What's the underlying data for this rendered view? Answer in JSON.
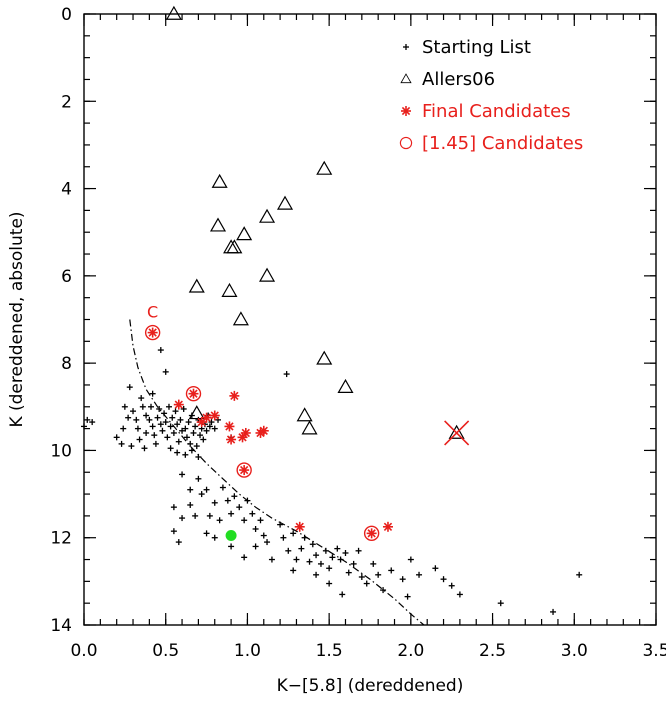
{
  "chart_data": {
    "type": "scatter",
    "title": "",
    "xlabel": "K−[5.8] (dereddened)",
    "ylabel": "K (dereddened, absolute)",
    "xlim": [
      0.0,
      3.5
    ],
    "ylim": [
      14,
      0
    ],
    "y_inverted": true,
    "x_ticks": [
      "0.0",
      "0.5",
      "1.0",
      "1.5",
      "2.0",
      "2.5",
      "3.0",
      "3.5"
    ],
    "y_ticks": [
      "0",
      "2",
      "4",
      "6",
      "8",
      "10",
      "12",
      "14"
    ],
    "x_tick_values": [
      0.0,
      0.5,
      1.0,
      1.5,
      2.0,
      2.5,
      3.0,
      3.5
    ],
    "y_tick_values": [
      0,
      2,
      4,
      6,
      8,
      10,
      12,
      14
    ],
    "legend_position": "top-right",
    "legend": [
      {
        "label": "Starting List",
        "marker": "plus",
        "color": "#000000"
      },
      {
        "label": "Allers06",
        "marker": "triangle",
        "color": "#000000"
      },
      {
        "label": "Final Candidates",
        "marker": "asterisk",
        "color": "#e8201c"
      },
      {
        "label": "[1.45] Candidates",
        "marker": "circle",
        "color": "#e8201c"
      }
    ],
    "annotations": [
      {
        "text": "C",
        "x": 0.42,
        "y": 6.95,
        "color": "#e8201c"
      }
    ],
    "series": [
      {
        "name": "Starting List",
        "marker": "plus",
        "color": "#000000",
        "points": [
          [
            0.02,
            9.3
          ],
          [
            0.05,
            9.35
          ],
          [
            0.0,
            9.45
          ],
          [
            0.28,
            8.55
          ],
          [
            0.35,
            8.8
          ],
          [
            0.42,
            8.7
          ],
          [
            0.47,
            7.7
          ],
          [
            0.5,
            8.2
          ],
          [
            0.25,
            9.0
          ],
          [
            0.27,
            9.25
          ],
          [
            0.3,
            9.1
          ],
          [
            0.32,
            9.3
          ],
          [
            0.33,
            9.5
          ],
          [
            0.36,
            9.0
          ],
          [
            0.38,
            9.2
          ],
          [
            0.38,
            9.6
          ],
          [
            0.4,
            9.3
          ],
          [
            0.41,
            9.0
          ],
          [
            0.42,
            9.45
          ],
          [
            0.43,
            9.65
          ],
          [
            0.45,
            9.25
          ],
          [
            0.46,
            9.05
          ],
          [
            0.47,
            9.4
          ],
          [
            0.48,
            9.55
          ],
          [
            0.49,
            9.15
          ],
          [
            0.5,
            9.35
          ],
          [
            0.51,
            9.7
          ],
          [
            0.52,
            9.0
          ],
          [
            0.53,
            9.45
          ],
          [
            0.54,
            9.25
          ],
          [
            0.55,
            9.6
          ],
          [
            0.56,
            9.1
          ],
          [
            0.57,
            9.4
          ],
          [
            0.58,
            9.8
          ],
          [
            0.59,
            9.3
          ],
          [
            0.6,
            9.55
          ],
          [
            0.61,
            9.05
          ],
          [
            0.62,
            9.5
          ],
          [
            0.63,
            9.7
          ],
          [
            0.64,
            9.35
          ],
          [
            0.65,
            9.85
          ],
          [
            0.66,
            9.2
          ],
          [
            0.67,
            9.6
          ],
          [
            0.68,
            9.45
          ],
          [
            0.69,
            9.9
          ],
          [
            0.7,
            9.3
          ],
          [
            0.71,
            9.65
          ],
          [
            0.72,
            9.5
          ],
          [
            0.73,
            9.75
          ],
          [
            0.74,
            9.4
          ],
          [
            0.75,
            9.55
          ],
          [
            0.76,
            9.2
          ],
          [
            0.77,
            9.45
          ],
          [
            0.78,
            9.35
          ],
          [
            0.8,
            9.5
          ],
          [
            0.82,
            9.3
          ],
          [
            0.24,
            9.5
          ],
          [
            0.2,
            9.7
          ],
          [
            0.23,
            9.85
          ],
          [
            0.29,
            9.9
          ],
          [
            0.34,
            9.75
          ],
          [
            0.37,
            9.95
          ],
          [
            0.44,
            9.85
          ],
          [
            0.53,
            9.95
          ],
          [
            0.57,
            10.05
          ],
          [
            0.62,
            10.1
          ],
          [
            0.66,
            10.0
          ],
          [
            0.7,
            10.15
          ],
          [
            0.6,
            10.55
          ],
          [
            0.65,
            10.9
          ],
          [
            0.7,
            10.65
          ],
          [
            0.72,
            11.0
          ],
          [
            0.55,
            11.3
          ],
          [
            0.6,
            11.55
          ],
          [
            0.55,
            11.85
          ],
          [
            0.58,
            12.1
          ],
          [
            0.65,
            11.25
          ],
          [
            0.68,
            11.5
          ],
          [
            0.75,
            10.9
          ],
          [
            0.8,
            11.2
          ],
          [
            0.77,
            11.5
          ],
          [
            0.85,
            10.85
          ],
          [
            0.88,
            11.15
          ],
          [
            0.9,
            11.45
          ],
          [
            0.83,
            11.6
          ],
          [
            0.75,
            11.9
          ],
          [
            0.8,
            12.0
          ],
          [
            0.92,
            11.05
          ],
          [
            0.95,
            11.3
          ],
          [
            1.0,
            11.15
          ],
          [
            0.98,
            11.6
          ],
          [
            1.03,
            11.45
          ],
          [
            1.05,
            11.8
          ],
          [
            1.08,
            11.6
          ],
          [
            1.1,
            11.95
          ],
          [
            0.9,
            12.2
          ],
          [
            0.98,
            12.45
          ],
          [
            1.05,
            12.2
          ],
          [
            1.12,
            12.1
          ],
          [
            1.2,
            11.7
          ],
          [
            1.22,
            12.0
          ],
          [
            1.25,
            12.3
          ],
          [
            1.28,
            11.9
          ],
          [
            1.3,
            12.5
          ],
          [
            1.33,
            12.25
          ],
          [
            1.35,
            12.0
          ],
          [
            1.38,
            12.55
          ],
          [
            1.4,
            12.15
          ],
          [
            1.42,
            12.4
          ],
          [
            1.45,
            12.6
          ],
          [
            1.48,
            12.3
          ],
          [
            1.5,
            12.7
          ],
          [
            1.52,
            12.45
          ],
          [
            1.55,
            12.25
          ],
          [
            1.57,
            12.5
          ],
          [
            1.6,
            12.35
          ],
          [
            1.62,
            12.8
          ],
          [
            1.65,
            12.6
          ],
          [
            1.68,
            12.3
          ],
          [
            1.7,
            12.9
          ],
          [
            1.73,
            13.05
          ],
          [
            1.77,
            12.6
          ],
          [
            1.8,
            12.85
          ],
          [
            1.83,
            13.2
          ],
          [
            1.88,
            12.75
          ],
          [
            1.95,
            12.95
          ],
          [
            2.0,
            12.5
          ],
          [
            1.98,
            13.35
          ],
          [
            2.05,
            12.85
          ],
          [
            2.15,
            12.7
          ],
          [
            2.2,
            12.95
          ],
          [
            2.25,
            13.1
          ],
          [
            2.3,
            13.3
          ],
          [
            1.5,
            13.05
          ],
          [
            1.58,
            13.3
          ],
          [
            1.42,
            12.85
          ],
          [
            1.28,
            12.75
          ],
          [
            1.15,
            12.5
          ],
          [
            1.24,
            8.25
          ],
          [
            3.03,
            12.85
          ],
          [
            2.55,
            13.5
          ],
          [
            2.87,
            13.7
          ],
          [
            0.9,
            9.7
          ]
        ]
      },
      {
        "name": "Allers06",
        "marker": "triangle",
        "color": "#000000",
        "points": [
          [
            0.55,
            0.0
          ],
          [
            0.83,
            3.85
          ],
          [
            1.47,
            3.55
          ],
          [
            1.23,
            4.35
          ],
          [
            1.12,
            4.65
          ],
          [
            0.82,
            4.85
          ],
          [
            0.98,
            5.05
          ],
          [
            0.9,
            5.35
          ],
          [
            0.92,
            5.35
          ],
          [
            1.12,
            6.0
          ],
          [
            0.69,
            6.25
          ],
          [
            0.89,
            6.35
          ],
          [
            0.96,
            7.0
          ],
          [
            1.47,
            7.9
          ],
          [
            1.6,
            8.55
          ],
          [
            1.35,
            9.2
          ],
          [
            1.38,
            9.5
          ],
          [
            0.69,
            9.15
          ],
          [
            2.28,
            9.6
          ]
        ]
      },
      {
        "name": "Final Candidates",
        "marker": "asterisk",
        "color": "#e8201c",
        "points": [
          [
            0.42,
            7.3
          ],
          [
            0.67,
            8.7
          ],
          [
            0.92,
            8.75
          ],
          [
            0.58,
            8.95
          ],
          [
            0.75,
            9.25
          ],
          [
            0.8,
            9.2
          ],
          [
            0.72,
            9.35
          ],
          [
            0.89,
            9.45
          ],
          [
            0.99,
            9.6
          ],
          [
            1.08,
            9.6
          ],
          [
            1.1,
            9.55
          ],
          [
            0.97,
            9.7
          ],
          [
            0.9,
            9.75
          ],
          [
            0.98,
            10.45
          ],
          [
            1.32,
            11.75
          ],
          [
            1.76,
            11.9
          ],
          [
            1.86,
            11.75
          ]
        ]
      },
      {
        "name": "[1.45] Candidates",
        "marker": "circle",
        "color": "#e8201c",
        "points": [
          [
            0.42,
            7.3
          ],
          [
            0.67,
            8.7
          ],
          [
            0.98,
            10.45
          ],
          [
            1.76,
            11.9
          ]
        ]
      },
      {
        "marker": "dot",
        "color": "#22dd22",
        "points": [
          [
            0.9,
            11.95
          ]
        ]
      },
      {
        "marker": "cross",
        "color": "#e8201c",
        "points": [
          [
            2.28,
            9.6
          ]
        ]
      },
      {
        "marker": "dash-dot-line",
        "color": "#000000",
        "points": [
          [
            0.28,
            7.0
          ],
          [
            0.3,
            7.6
          ],
          [
            0.33,
            8.1
          ],
          [
            0.38,
            8.6
          ],
          [
            0.45,
            9.0
          ],
          [
            0.55,
            9.45
          ],
          [
            0.65,
            9.9
          ],
          [
            0.75,
            10.3
          ],
          [
            0.85,
            10.65
          ],
          [
            0.95,
            11.0
          ],
          [
            1.05,
            11.3
          ],
          [
            1.15,
            11.55
          ],
          [
            1.3,
            11.85
          ],
          [
            1.45,
            12.2
          ],
          [
            1.6,
            12.55
          ],
          [
            1.75,
            12.95
          ],
          [
            1.9,
            13.4
          ],
          [
            2.0,
            13.75
          ],
          [
            2.08,
            14.0
          ]
        ]
      }
    ]
  }
}
